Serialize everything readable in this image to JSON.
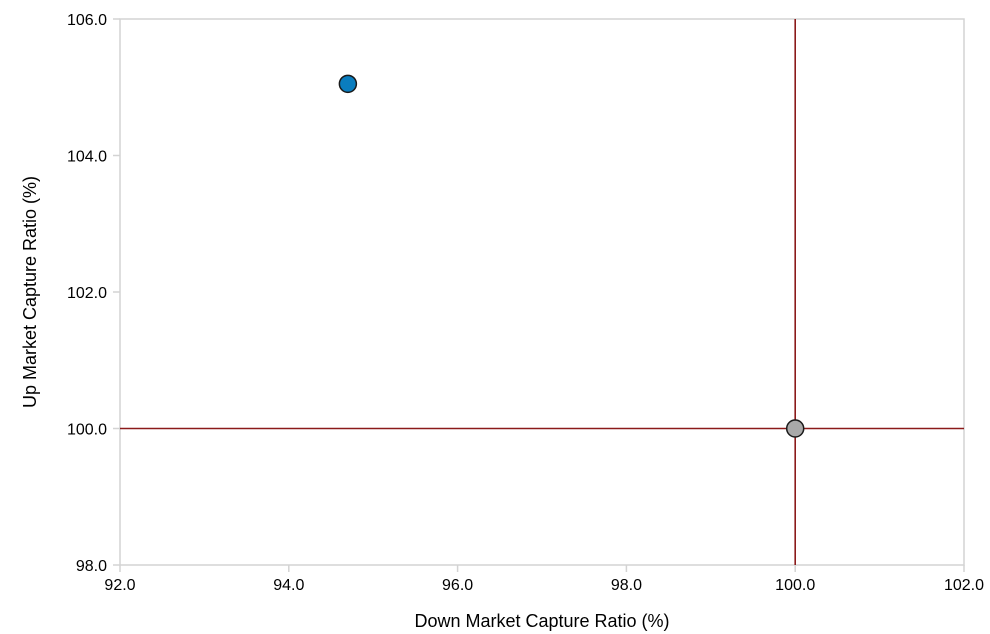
{
  "chart_data": {
    "type": "scatter",
    "title": "",
    "xlabel": "Down Market Capture Ratio (%)",
    "ylabel": "Up Market Capture Ratio (%)",
    "xlim": [
      92.0,
      102.0
    ],
    "ylim": [
      98.0,
      106.0
    ],
    "x_ticks": [
      "92.0",
      "94.0",
      "96.0",
      "98.0",
      "100.0",
      "102.0"
    ],
    "y_ticks": [
      "98.0",
      "100.0",
      "102.0",
      "104.0",
      "106.0"
    ],
    "reference_lines": {
      "x": 100.0,
      "y": 100.0,
      "color": "#8b1a1a"
    },
    "grid": false,
    "series": [
      {
        "points": [
          {
            "x": 94.7,
            "y": 105.05
          }
        ],
        "color": "#0a7dbf"
      },
      {
        "points": [
          {
            "x": 100.0,
            "y": 100.0
          }
        ],
        "color": "#a9a9a9"
      }
    ]
  }
}
